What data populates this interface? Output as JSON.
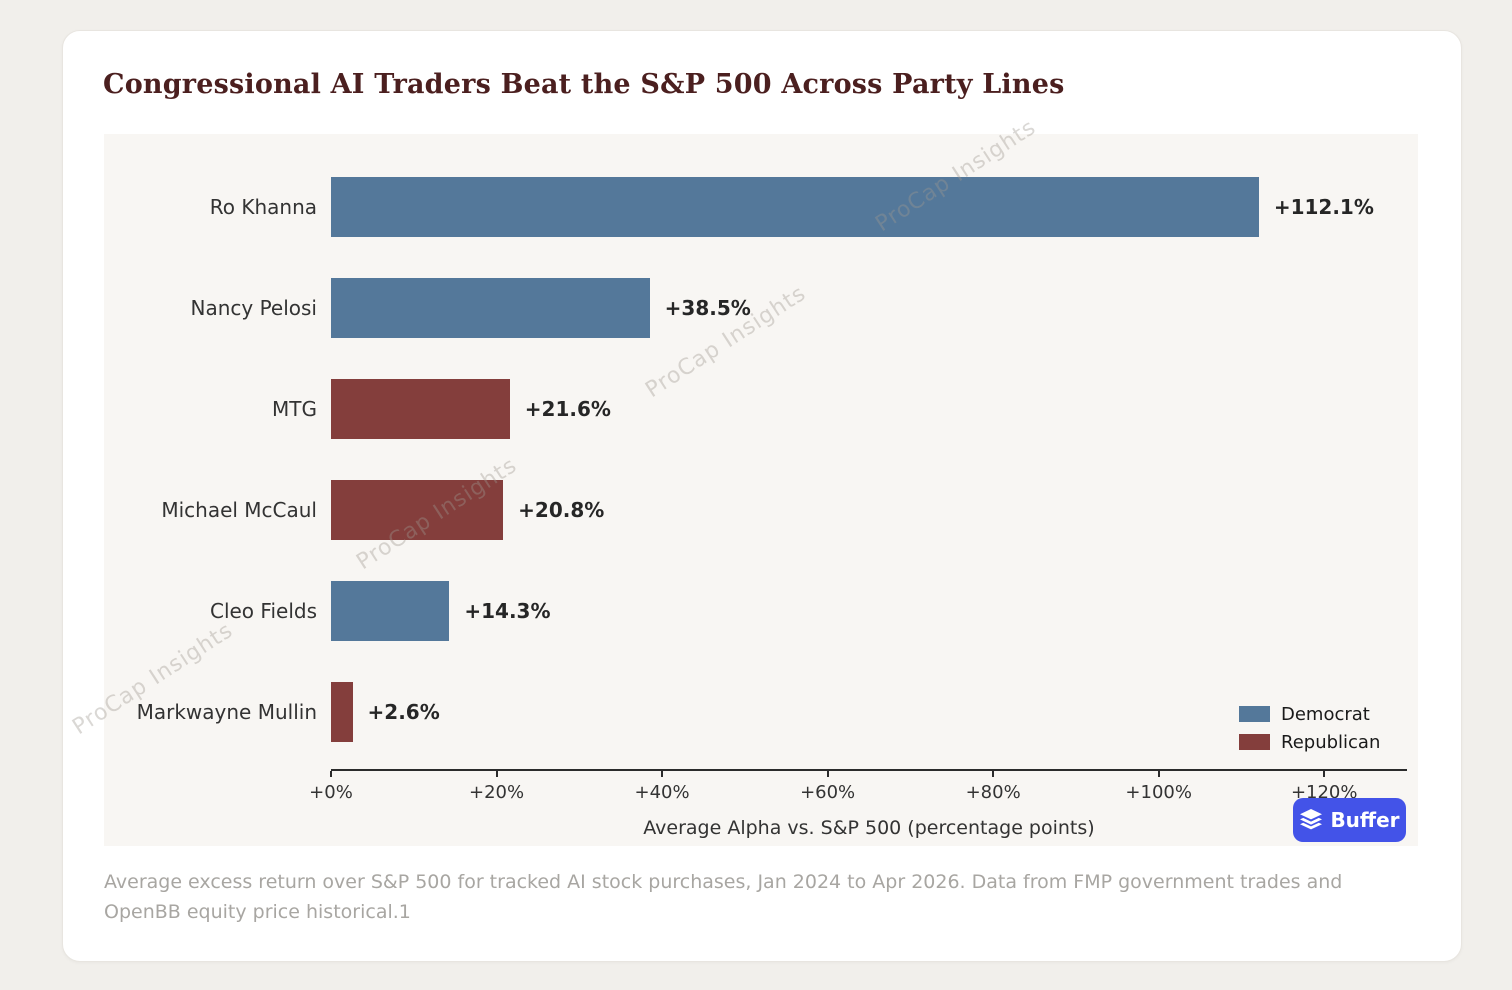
{
  "title": "Congressional AI Traders Beat the S&P 500 Across Party Lines",
  "caption": "Average excess return over S&P 500 for tracked AI stock purchases, Jan 2024 to Apr 2026. Data from FMP government trades and OpenBB equity price historical.1",
  "watermark": {
    "text": "ProCap Insights"
  },
  "badge": {
    "label": "Buffer",
    "color": "#4353e8",
    "icon": "buffer-layers-icon"
  },
  "colors": {
    "democrat": "#54789a",
    "republican": "#843e3c",
    "title_text": "#4b1f1f",
    "plot_background": "#f8f6f3",
    "card_background": "#ffffff",
    "page_background": "#f1efeb"
  },
  "chart_data": {
    "type": "bar",
    "orientation": "horizontal",
    "title": "Congressional AI Traders Beat the S&P 500 Across Party Lines",
    "categories": [
      "Ro Khanna",
      "Nancy Pelosi",
      "MTG",
      "Michael McCaul",
      "Cleo Fields",
      "Markwayne Mullin"
    ],
    "values": [
      112.1,
      38.5,
      21.6,
      20.8,
      14.3,
      2.6
    ],
    "value_labels": [
      "+112.1%",
      "+38.5%",
      "+21.6%",
      "+20.8%",
      "+14.3%",
      "+2.6%"
    ],
    "parties": [
      "Democrat",
      "Democrat",
      "Republican",
      "Republican",
      "Democrat",
      "Republican"
    ],
    "party_colors": {
      "Democrat": "#54789a",
      "Republican": "#843e3c"
    },
    "xlabel": "Average Alpha vs. S&P 500 (percentage points)",
    "xlim": [
      0,
      130
    ],
    "x_ticks": [
      {
        "value": 0,
        "label": "+0%"
      },
      {
        "value": 20,
        "label": "+20%"
      },
      {
        "value": 40,
        "label": "+40%"
      },
      {
        "value": 60,
        "label": "+60%"
      },
      {
        "value": 80,
        "label": "+80%"
      },
      {
        "value": 100,
        "label": "+100%"
      },
      {
        "value": 120,
        "label": "+120%"
      }
    ],
    "grid": false,
    "legend": {
      "position": "lower right",
      "entries": [
        {
          "label": "Democrat",
          "color": "#54789a"
        },
        {
          "label": "Republican",
          "color": "#843e3c"
        }
      ]
    }
  }
}
